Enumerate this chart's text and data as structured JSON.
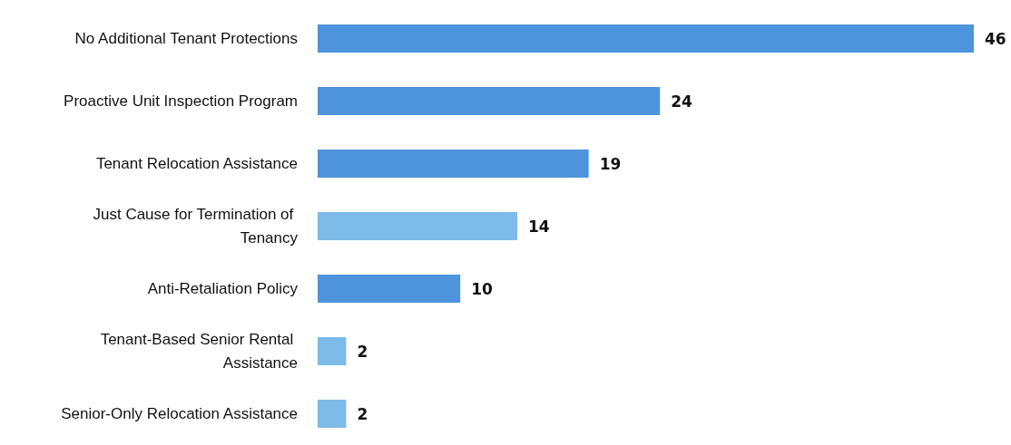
{
  "chart_data": {
    "type": "bar",
    "orientation": "horizontal",
    "categories": [
      "No Additional Tenant Protections",
      "Proactive Unit Inspection Program",
      "Tenant Relocation Assistance",
      "Just Cause for Termination of Tenancy",
      "Anti-Retaliation Policy",
      "Tenant-Based Senior Rental Assistance",
      "Senior-Only Relocation Assistance"
    ],
    "values": [
      46,
      24,
      19,
      14,
      10,
      2,
      2
    ],
    "colors": [
      "#4d94dc",
      "#4d94dc",
      "#4d94dc",
      "#7dbbe8",
      "#4d94dc",
      "#7dbbe8",
      "#7dbbe8"
    ],
    "data_labels": true
  }
}
